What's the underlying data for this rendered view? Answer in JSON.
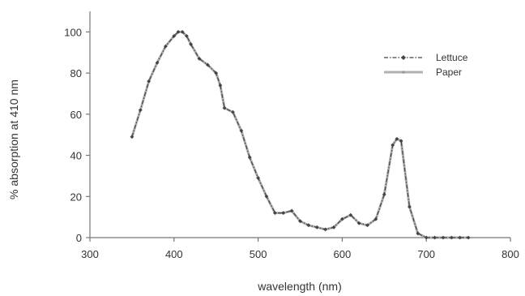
{
  "chart_data": {
    "type": "line",
    "title": "",
    "xlabel": "wavelength  (nm)",
    "ylabel": "% absorption at 410 nm",
    "xlim": [
      300,
      800
    ],
    "ylim": [
      0,
      110
    ],
    "xticks": [
      300,
      400,
      500,
      600,
      700,
      800
    ],
    "yticks": [
      0,
      20,
      40,
      60,
      80,
      100
    ],
    "x_tick_labels": [
      "300",
      "400",
      "500",
      "600",
      "700",
      "800"
    ],
    "y_tick_labels": [
      "0",
      "20",
      "40",
      "60",
      "80",
      "100"
    ],
    "grid": false,
    "legend_position": "top-right",
    "series": [
      {
        "name": "Lettuce",
        "color": "#444444",
        "line_style": "dash-dot",
        "marker": "diamond",
        "x": [
          350,
          360,
          370,
          380,
          390,
          400,
          405,
          410,
          415,
          420,
          430,
          440,
          450,
          455,
          460,
          470,
          480,
          490,
          500,
          510,
          520,
          530,
          540,
          550,
          560,
          570,
          580,
          590,
          600,
          610,
          620,
          630,
          640,
          650,
          660,
          665,
          670,
          680,
          690,
          700,
          710,
          720,
          730,
          740,
          750
        ],
        "y": [
          49,
          62,
          76,
          85,
          93,
          98,
          100,
          100,
          98,
          94,
          87,
          84,
          80,
          74,
          63,
          61,
          52,
          39,
          29,
          20,
          12,
          12,
          13,
          8,
          6,
          5,
          4,
          5,
          9,
          11,
          7,
          6,
          9,
          21,
          45,
          48,
          47,
          15,
          2,
          0,
          0,
          0,
          0,
          0,
          0
        ]
      },
      {
        "name": "Paper",
        "color": "#b0b0b0",
        "line_style": "solid",
        "marker": "dot",
        "x": [
          350,
          360,
          370,
          380,
          390,
          400,
          405,
          410,
          415,
          420,
          430,
          440,
          450,
          455,
          460,
          470,
          480,
          490,
          500,
          510,
          520,
          530,
          540,
          550,
          560,
          570,
          580,
          590,
          600,
          610,
          620,
          630,
          640,
          650,
          660,
          665,
          670,
          680,
          690,
          700,
          710,
          720,
          730,
          740,
          750
        ],
        "y": [
          49,
          62,
          76,
          85,
          93,
          98,
          100,
          100,
          98,
          94,
          87,
          84,
          80,
          74,
          63,
          61,
          52,
          39,
          29,
          20,
          12,
          12,
          13,
          8,
          6,
          5,
          4,
          5,
          9,
          11,
          7,
          6,
          9,
          21,
          45,
          48,
          47,
          15,
          2,
          0,
          0,
          0,
          0,
          0,
          0
        ]
      }
    ]
  }
}
